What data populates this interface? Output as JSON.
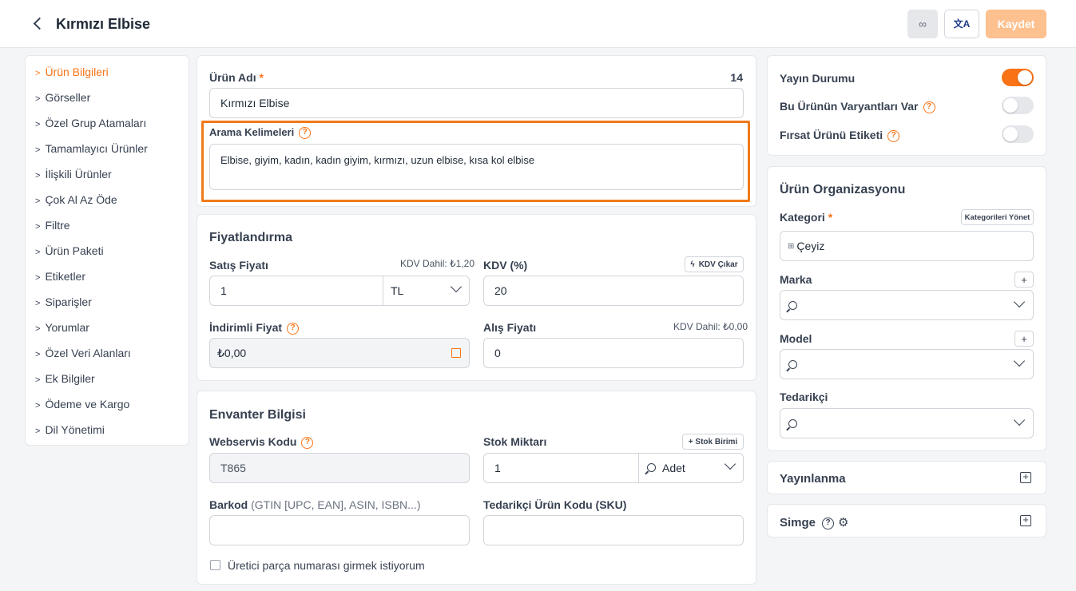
{
  "header": {
    "title": "Kırmızı Elbise",
    "save_label": "Kaydet"
  },
  "sidebar": {
    "items": [
      {
        "label": "Ürün Bilgileri",
        "active": true
      },
      {
        "label": "Görseller"
      },
      {
        "label": "Özel Grup Atamaları"
      },
      {
        "label": "Tamamlayıcı Ürünler"
      },
      {
        "label": "İlişkili Ürünler"
      },
      {
        "label": "Çok Al Az Öde"
      },
      {
        "label": "Filtre"
      },
      {
        "label": "Ürün Paketi"
      },
      {
        "label": "Etiketler"
      },
      {
        "label": "Siparişler"
      },
      {
        "label": "Yorumlar"
      },
      {
        "label": "Özel Veri Alanları"
      },
      {
        "label": "Ek Bilgiler"
      },
      {
        "label": "Ödeme ve Kargo"
      },
      {
        "label": "Dil Yönetimi"
      }
    ]
  },
  "product": {
    "name_label": "Ürün Adı",
    "name_count": "14",
    "name_value": "Kırmızı Elbise",
    "keywords_label": "Arama Kelimeleri",
    "keywords_value": "Elbise, giyim, kadın, kadın giyim, kırmızı, uzun elbise, kısa kol elbise"
  },
  "pricing": {
    "title": "Fiyatlandırma",
    "sale_label": "Satış Fiyatı",
    "sale_vat_note": "KDV Dahil: ₺1,20",
    "sale_value": "1",
    "currency": "TL",
    "vat_label": "KDV (%)",
    "vat_remove": "KDV Çıkar",
    "vat_value": "20",
    "discount_label": "İndirimli Fiyat",
    "discount_value": "₺0,00",
    "purchase_label": "Alış Fiyatı",
    "purchase_vat_note": "KDV Dahil: ₺0,00",
    "purchase_value": "0"
  },
  "inventory": {
    "title": "Envanter Bilgisi",
    "ws_label": "Webservis Kodu",
    "ws_value": "T865",
    "stock_label": "Stok Miktarı",
    "stock_unit_btn": "+ Stok Birimi",
    "stock_value": "1",
    "stock_unit": "Adet",
    "barcode_label": "Barkod",
    "barcode_hint": "(GTIN [UPC, EAN], ASIN, ISBN...)",
    "sku_label": "Tedarikçi Ürün Kodu (SKU)",
    "mpn_checkbox": "Üretici parça numarası girmek istiyorum"
  },
  "status": {
    "publish_label": "Yayın Durumu",
    "publish_on": true,
    "variants_label": "Bu Ürünün Varyantları Var",
    "variants_on": false,
    "deal_label": "Fırsat Ürünü Etiketi",
    "deal_on": false
  },
  "org": {
    "title": "Ürün Organizasyonu",
    "category_label": "Kategori",
    "manage_categories": "Kategorileri Yönet",
    "category_value": "Çeyiz",
    "brand_label": "Marka",
    "model_label": "Model",
    "supplier_label": "Tedarikçi"
  },
  "publishing": {
    "title": "Yayınlanma"
  },
  "symbol": {
    "title": "Simge"
  },
  "colors": {
    "accent": "#f97316",
    "save_disabled": "#fdc08f"
  }
}
